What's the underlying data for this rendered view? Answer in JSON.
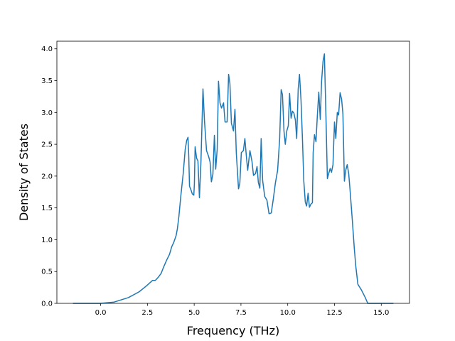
{
  "chart_data": {
    "type": "line",
    "xlabel": "Frequency (THz)",
    "ylabel": "Density of States",
    "color": "#1f77b4",
    "xlim": [
      -2.34,
      16.51
    ],
    "ylim": [
      0,
      4.12
    ],
    "xticks": [
      {
        "value": 0,
        "label": "0.0"
      },
      {
        "value": 2.5,
        "label": "2.5"
      },
      {
        "value": 5,
        "label": "5.0"
      },
      {
        "value": 7.5,
        "label": "7.5"
      },
      {
        "value": 10,
        "label": "10.0"
      },
      {
        "value": 12.5,
        "label": "12.5"
      },
      {
        "value": 15,
        "label": "15.0"
      }
    ],
    "yticks": [
      {
        "value": 0,
        "label": "0.0"
      },
      {
        "value": 0.5,
        "label": "0.5"
      },
      {
        "value": 1,
        "label": "1.0"
      },
      {
        "value": 1.5,
        "label": "1.5"
      },
      {
        "value": 2,
        "label": "2.0"
      },
      {
        "value": 2.5,
        "label": "2.5"
      },
      {
        "value": 3,
        "label": "3.0"
      },
      {
        "value": 3.5,
        "label": "3.5"
      },
      {
        "value": 4,
        "label": "4.0"
      }
    ],
    "x": [
      -1.48,
      0,
      0.72,
      1.48,
      2.05,
      2.43,
      2.77,
      2.92,
      3.08,
      3.23,
      3.38,
      3.53,
      3.68,
      3.8,
      3.91,
      4.03,
      4.1,
      4.18,
      4.29,
      4.41,
      4.52,
      4.6,
      4.67,
      4.71,
      4.75,
      4.82,
      4.9,
      4.98,
      5.01,
      5.05,
      5.13,
      5.2,
      5.28,
      5.36,
      5.47,
      5.55,
      5.66,
      5.77,
      5.85,
      5.92,
      6.0,
      6.08,
      6.15,
      6.23,
      6.3,
      6.38,
      6.46,
      6.57,
      6.65,
      6.76,
      6.84,
      6.91,
      6.99,
      7.1,
      7.18,
      7.25,
      7.37,
      7.44,
      7.52,
      7.63,
      7.71,
      7.79,
      7.86,
      7.98,
      8.09,
      8.17,
      8.28,
      8.36,
      8.43,
      8.51,
      8.58,
      8.66,
      8.77,
      8.89,
      9.0,
      9.12,
      9.23,
      9.34,
      9.46,
      9.57,
      9.65,
      9.72,
      9.8,
      9.87,
      9.95,
      10.03,
      10.1,
      10.18,
      10.25,
      10.33,
      10.41,
      10.48,
      10.56,
      10.63,
      10.71,
      10.79,
      10.86,
      10.94,
      11.01,
      11.09,
      11.16,
      11.24,
      11.32,
      11.36,
      11.43,
      11.51,
      11.58,
      11.66,
      11.74,
      11.81,
      11.89,
      11.96,
      12.04,
      12.12,
      12.19,
      12.27,
      12.34,
      12.42,
      12.5,
      12.57,
      12.65,
      12.72,
      12.8,
      12.88,
      12.95,
      13.03,
      13.1,
      13.18,
      13.26,
      13.33,
      13.45,
      13.56,
      13.64,
      13.75,
      13.94,
      14.13,
      14.28,
      14.77,
      15.65
    ],
    "values": [
      0,
      0,
      0.02,
      0.09,
      0.18,
      0.27,
      0.36,
      0.36,
      0.41,
      0.47,
      0.58,
      0.68,
      0.77,
      0.89,
      0.96,
      1.06,
      1.17,
      1.36,
      1.7,
      2.03,
      2.42,
      2.56,
      2.61,
      2.31,
      1.84,
      1.79,
      1.72,
      1.7,
      1.87,
      2.46,
      2.28,
      2.24,
      1.66,
      2.21,
      3.37,
      2.87,
      2.4,
      2.31,
      2.22,
      1.91,
      2.03,
      2.64,
      2.11,
      2.42,
      3.49,
      3.15,
      3.07,
      3.15,
      2.85,
      2.85,
      3.6,
      3.45,
      2.83,
      2.71,
      3.05,
      2.37,
      1.8,
      1.89,
      2.37,
      2.4,
      2.59,
      2.31,
      2.09,
      2.4,
      2.23,
      2.01,
      2.04,
      2.15,
      1.9,
      1.81,
      2.59,
      1.93,
      1.68,
      1.62,
      1.41,
      1.42,
      1.64,
      1.89,
      2.09,
      2.59,
      3.36,
      3.28,
      2.71,
      2.5,
      2.71,
      2.79,
      3.3,
      2.91,
      3.02,
      2.99,
      2.88,
      2.59,
      3.37,
      3.6,
      3.2,
      2.56,
      1.92,
      1.59,
      1.53,
      1.73,
      1.51,
      1.56,
      1.58,
      2.37,
      2.65,
      2.54,
      2.93,
      3.32,
      2.89,
      3.49,
      3.81,
      3.92,
      2.99,
      1.96,
      2.04,
      2.12,
      2.06,
      2.18,
      2.85,
      2.59,
      3.0,
      2.96,
      3.31,
      3.21,
      2.98,
      1.92,
      2.09,
      2.18,
      2.04,
      1.79,
      1.32,
      0.86,
      0.58,
      0.3,
      0.21,
      0.1,
      0,
      0,
      0
    ]
  }
}
